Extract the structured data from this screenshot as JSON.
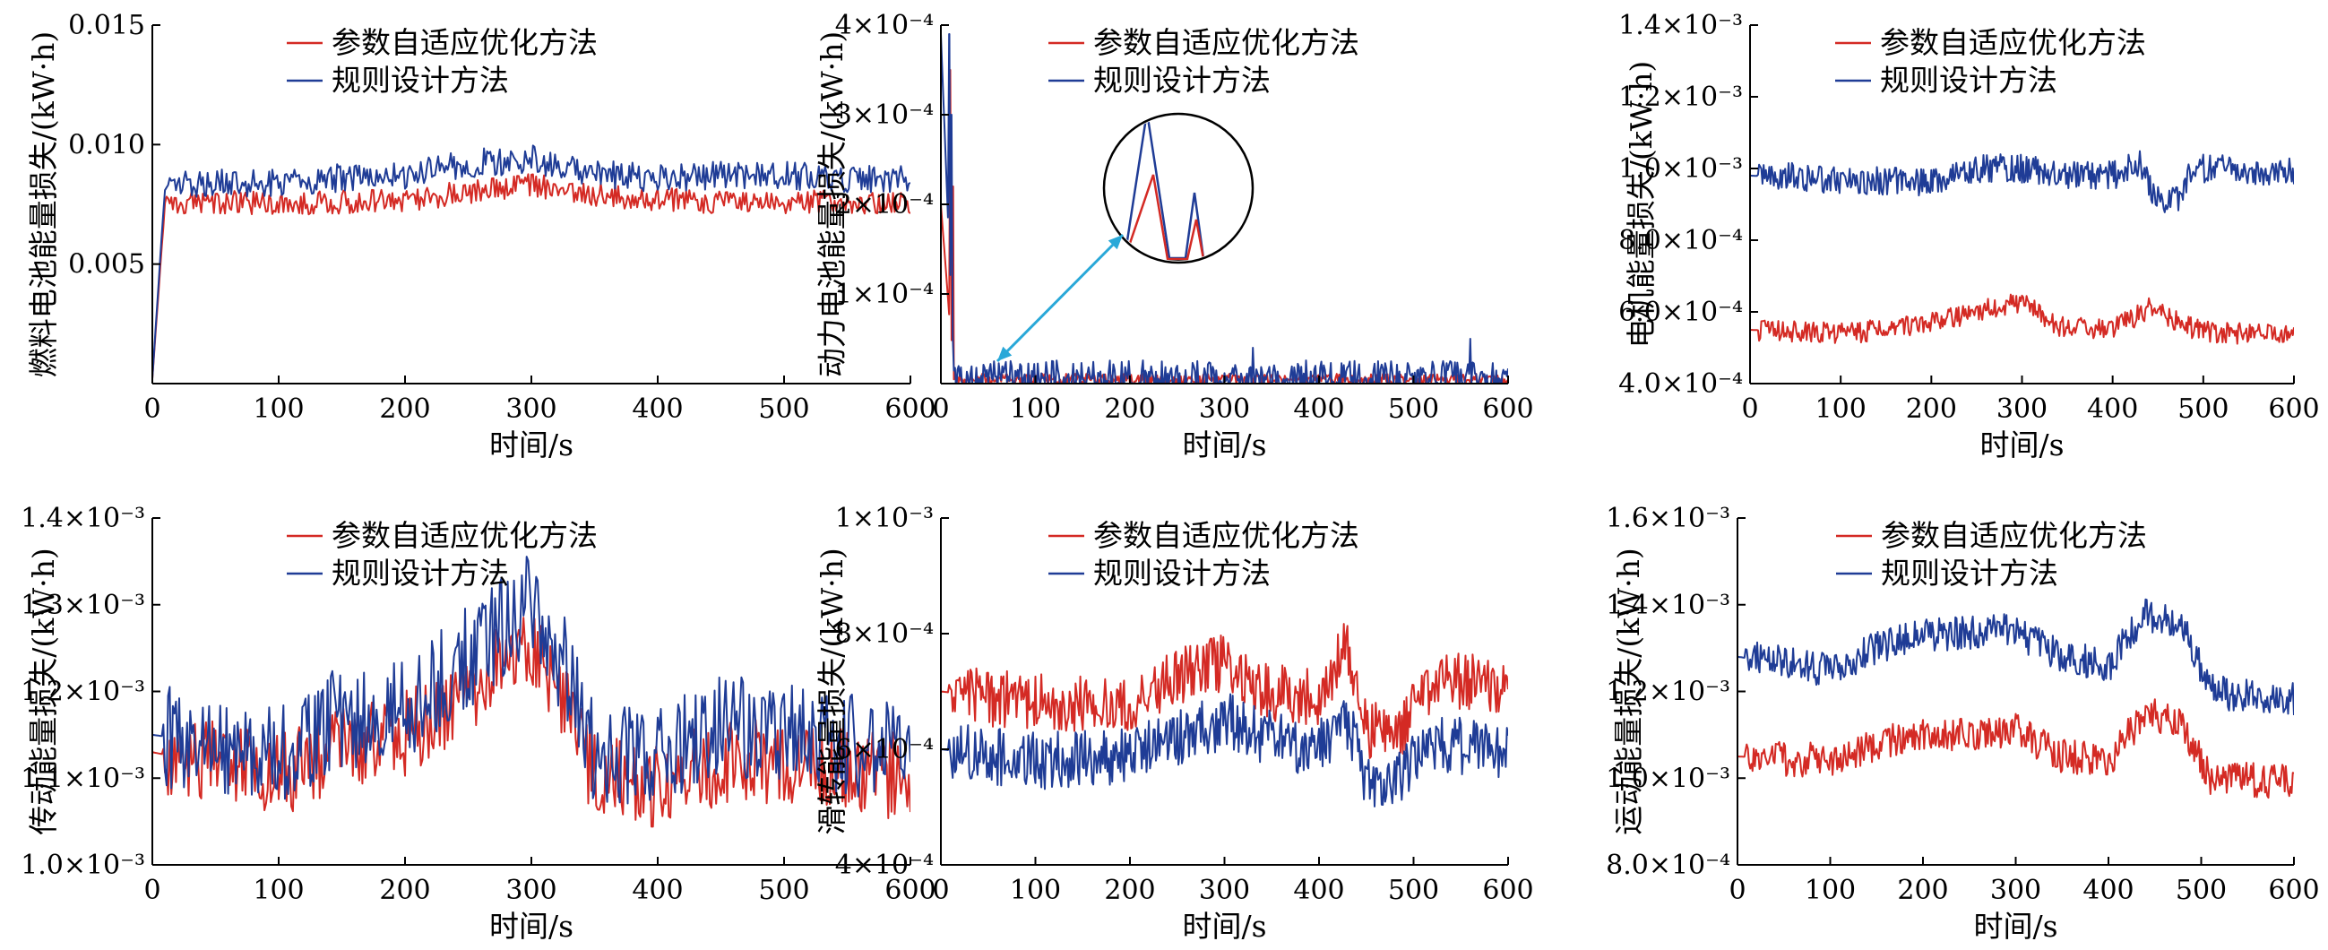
{
  "figure": {
    "legend_labels": [
      "参数自适应优化方法",
      "规则设计方法"
    ],
    "series_colors": [
      "#d42a24",
      "#1f3c96"
    ],
    "inset_arrow_color": "#29a8d8"
  },
  "chart_data": [
    {
      "type": "line",
      "xlabel": "时间/s",
      "ylabel": "燃料电池能量损失/(kW·h)",
      "xlim": [
        0,
        600
      ],
      "ylim": [
        0,
        0.015
      ],
      "xticks": [
        0,
        100,
        200,
        300,
        400,
        500,
        600
      ],
      "xtick_labels": [
        "0",
        "100",
        "200",
        "300",
        "400",
        "500",
        "600"
      ],
      "yticks": [
        0.005,
        0.01,
        0.015
      ],
      "ytick_labels": [
        "0.005",
        "0.010",
        "0.015"
      ],
      "legend_position": "top-center",
      "series": [
        {
          "name": "参数自适应优化方法",
          "color": "#d42a24",
          "points": [
            [
              0,
              0.0002
            ],
            [
              10,
              0.0076
            ],
            [
              50,
              0.0076
            ],
            [
              100,
              0.0075
            ],
            [
              150,
              0.0076
            ],
            [
              200,
              0.0077
            ],
            [
              250,
              0.008
            ],
            [
              300,
              0.0083
            ],
            [
              350,
              0.0079
            ],
            [
              400,
              0.0077
            ],
            [
              450,
              0.0076
            ],
            [
              500,
              0.0076
            ],
            [
              550,
              0.0076
            ],
            [
              600,
              0.0075
            ]
          ],
          "noise": 0.0005
        },
        {
          "name": "规则设计方法",
          "color": "#1f3c96",
          "points": [
            [
              0,
              0.0002
            ],
            [
              10,
              0.0083
            ],
            [
              50,
              0.0084
            ],
            [
              100,
              0.0084
            ],
            [
              150,
              0.0086
            ],
            [
              200,
              0.0087
            ],
            [
              250,
              0.0092
            ],
            [
              300,
              0.0094
            ],
            [
              350,
              0.0088
            ],
            [
              400,
              0.0086
            ],
            [
              450,
              0.0087
            ],
            [
              500,
              0.0087
            ],
            [
              550,
              0.0086
            ],
            [
              600,
              0.0085
            ]
          ],
          "noise": 0.0006
        }
      ]
    },
    {
      "type": "line",
      "xlabel": "时间/s",
      "ylabel": "动力电池能量损失/(kW·h)",
      "xlim": [
        0,
        600
      ],
      "ylim": [
        0,
        0.0004
      ],
      "xticks": [
        0,
        100,
        200,
        300,
        400,
        500,
        600
      ],
      "xtick_labels": [
        "0",
        "100",
        "200",
        "300",
        "400",
        "500",
        "600"
      ],
      "yticks": [
        0.0001,
        0.0002,
        0.0003,
        0.0004
      ],
      "ytick_labels": [
        "1×10⁻⁴",
        "2×10⁻⁴",
        "3×10⁻⁴",
        "4×10⁻⁴"
      ],
      "legend_position": "top-center",
      "has_zoom_inset": true,
      "series": [
        {
          "name": "参数自适应优化方法",
          "color": "#d42a24",
          "points": [
            [
              0,
              0.0002
            ],
            [
              14,
              5e-06
            ],
            [
              600,
              5e-06
            ]
          ],
          "noise": 6e-06,
          "spikes": [
            [
              10,
              0.00035
            ],
            [
              13,
              0.00022
            ]
          ]
        },
        {
          "name": "规则设计方法",
          "color": "#1f3c96",
          "points": [
            [
              0,
              0.00039
            ],
            [
              14,
              8e-06
            ],
            [
              600,
              8e-06
            ]
          ],
          "noise": 1.8e-05,
          "spikes": [
            [
              9,
              0.00039
            ],
            [
              11,
              0.0003
            ],
            [
              330,
              4e-05
            ],
            [
              560,
              5e-05
            ]
          ]
        }
      ]
    },
    {
      "type": "line",
      "xlabel": "时间/s",
      "ylabel": "电机能量损失/(kW·h)",
      "xlim": [
        0,
        600
      ],
      "ylim": [
        0.0004,
        0.0014
      ],
      "xticks": [
        0,
        100,
        200,
        300,
        400,
        500,
        600
      ],
      "xtick_labels": [
        "0",
        "100",
        "200",
        "300",
        "400",
        "500",
        "600"
      ],
      "yticks": [
        0.0004,
        0.0006,
        0.0008,
        0.001,
        0.0012,
        0.0014
      ],
      "ytick_labels": [
        "4.0×10⁻⁴",
        "6.0×10⁻⁴",
        "8.0×10⁻⁴",
        "1.0×10⁻³",
        "1.2×10⁻³",
        "1.4×10⁻³"
      ],
      "legend_position": "top-center",
      "series": [
        {
          "name": "参数自适应优化方法",
          "color": "#d42a24",
          "points": [
            [
              0,
              0.00055
            ],
            [
              100,
              0.00054
            ],
            [
              150,
              0.00055
            ],
            [
              200,
              0.00057
            ],
            [
              250,
              0.0006
            ],
            [
              300,
              0.00063
            ],
            [
              340,
              0.00056
            ],
            [
              400,
              0.00055
            ],
            [
              440,
              0.00061
            ],
            [
              480,
              0.00056
            ],
            [
              520,
              0.00054
            ],
            [
              600,
              0.00054
            ]
          ],
          "noise": 3e-05
        },
        {
          "name": "规则设计方法",
          "color": "#1f3c96",
          "points": [
            [
              0,
              0.00098
            ],
            [
              100,
              0.00097
            ],
            [
              200,
              0.00096
            ],
            [
              240,
              0.001
            ],
            [
              300,
              0.001
            ],
            [
              360,
              0.00098
            ],
            [
              400,
              0.00098
            ],
            [
              430,
              0.00102
            ],
            [
              445,
              0.00092
            ],
            [
              470,
              0.00091
            ],
            [
              490,
              0.001
            ],
            [
              600,
              0.00099
            ]
          ],
          "noise": 4e-05
        }
      ]
    },
    {
      "type": "line",
      "xlabel": "时间/s",
      "ylabel": "传动能量损失/(kW·h)",
      "xlim": [
        0,
        600
      ],
      "ylim": [
        0.001,
        0.0014
      ],
      "xticks": [
        0,
        100,
        200,
        300,
        400,
        500,
        600
      ],
      "xtick_labels": [
        "0",
        "100",
        "200",
        "300",
        "400",
        "500",
        "600"
      ],
      "yticks": [
        0.001,
        0.0011,
        0.0012,
        0.0013,
        0.0014
      ],
      "ytick_labels": [
        "1.0×10⁻³",
        "1.1×10⁻³",
        "1.2×10⁻³",
        "1.3×10⁻³",
        "1.4×10⁻³"
      ],
      "legend_position": "top-center",
      "series": [
        {
          "name": "参数自适应优化方法",
          "color": "#d42a24",
          "points": [
            [
              0,
              0.00113
            ],
            [
              100,
              0.0011
            ],
            [
              150,
              0.00114
            ],
            [
              200,
              0.00115
            ],
            [
              250,
              0.0012
            ],
            [
              300,
              0.00125
            ],
            [
              330,
              0.00118
            ],
            [
              350,
              0.0011
            ],
            [
              400,
              0.00109
            ],
            [
              450,
              0.00112
            ],
            [
              500,
              0.00112
            ],
            [
              600,
              0.0011
            ]
          ],
          "noise": 5e-05
        },
        {
          "name": "规则设计方法",
          "color": "#1f3c96",
          "points": [
            [
              0,
              0.00115
            ],
            [
              100,
              0.00113
            ],
            [
              150,
              0.00117
            ],
            [
              200,
              0.00118
            ],
            [
              250,
              0.00124
            ],
            [
              300,
              0.0013
            ],
            [
              330,
              0.00122
            ],
            [
              350,
              0.00113
            ],
            [
              400,
              0.00112
            ],
            [
              450,
              0.00116
            ],
            [
              500,
              0.00115
            ],
            [
              600,
              0.00113
            ]
          ],
          "noise": 6e-05
        }
      ]
    },
    {
      "type": "line",
      "xlabel": "时间/s",
      "ylabel": "滑转能量损失/(kW·h)",
      "xlim": [
        0,
        600
      ],
      "ylim": [
        0.0004,
        0.001
      ],
      "xticks": [
        0,
        100,
        200,
        300,
        400,
        500,
        600
      ],
      "xtick_labels": [
        "0",
        "100",
        "200",
        "300",
        "400",
        "500",
        "600"
      ],
      "yticks": [
        0.0004,
        0.0006,
        0.0008,
        0.001
      ],
      "ytick_labels": [
        "4×10⁻⁴",
        "6×10⁻⁴",
        "8×10⁻⁴",
        "1×10⁻³"
      ],
      "legend_position": "top-center",
      "series": [
        {
          "name": "参数自适应优化方法",
          "color": "#d42a24",
          "points": [
            [
              0,
              0.0007
            ],
            [
              100,
              0.00068
            ],
            [
              200,
              0.00068
            ],
            [
              240,
              0.00072
            ],
            [
              300,
              0.00075
            ],
            [
              340,
              0.0007
            ],
            [
              400,
              0.00069
            ],
            [
              430,
              0.00078
            ],
            [
              450,
              0.00063
            ],
            [
              490,
              0.00064
            ],
            [
              520,
              0.00072
            ],
            [
              600,
              0.00071
            ]
          ],
          "noise": 5e-05
        },
        {
          "name": "规则设计方法",
          "color": "#1f3c96",
          "points": [
            [
              0,
              0.0006
            ],
            [
              100,
              0.00058
            ],
            [
              200,
              0.00059
            ],
            [
              240,
              0.00061
            ],
            [
              300,
              0.00065
            ],
            [
              340,
              0.00062
            ],
            [
              400,
              0.0006
            ],
            [
              430,
              0.00065
            ],
            [
              450,
              0.00054
            ],
            [
              490,
              0.00056
            ],
            [
              520,
              0.00061
            ],
            [
              600,
              0.0006
            ]
          ],
          "noise": 5e-05
        }
      ]
    },
    {
      "type": "line",
      "xlabel": "时间/s",
      "ylabel": "运动能量损失/(kW·h)",
      "xlim": [
        0,
        600
      ],
      "ylim": [
        0.0008,
        0.0016
      ],
      "xticks": [
        0,
        100,
        200,
        300,
        400,
        500,
        600
      ],
      "xtick_labels": [
        "0",
        "100",
        "200",
        "300",
        "400",
        "500",
        "600"
      ],
      "yticks": [
        0.0008,
        0.001,
        0.0012,
        0.0014,
        0.0016
      ],
      "ytick_labels": [
        "8.0×10⁻⁴",
        "1.0×10⁻³",
        "1.2×10⁻³",
        "1.4×10⁻³",
        "1.6×10⁻³"
      ],
      "legend_position": "top-center",
      "series": [
        {
          "name": "参数自适应优化方法",
          "color": "#d42a24",
          "points": [
            [
              0,
              0.00105
            ],
            [
              100,
              0.00104
            ],
            [
              150,
              0.00108
            ],
            [
              200,
              0.0011
            ],
            [
              300,
              0.00111
            ],
            [
              350,
              0.00105
            ],
            [
              400,
              0.00104
            ],
            [
              440,
              0.00115
            ],
            [
              480,
              0.00112
            ],
            [
              510,
              0.001
            ],
            [
              600,
              0.00099
            ]
          ],
          "noise": 4e-05
        },
        {
          "name": "规则设计方法",
          "color": "#1f3c96",
          "points": [
            [
              0,
              0.00128
            ],
            [
              100,
              0.00125
            ],
            [
              150,
              0.0013
            ],
            [
              200,
              0.00133
            ],
            [
              300,
              0.00134
            ],
            [
              350,
              0.00128
            ],
            [
              400,
              0.00126
            ],
            [
              440,
              0.00138
            ],
            [
              480,
              0.00135
            ],
            [
              510,
              0.0012
            ],
            [
              600,
              0.00118
            ]
          ],
          "noise": 4e-05
        }
      ]
    }
  ]
}
